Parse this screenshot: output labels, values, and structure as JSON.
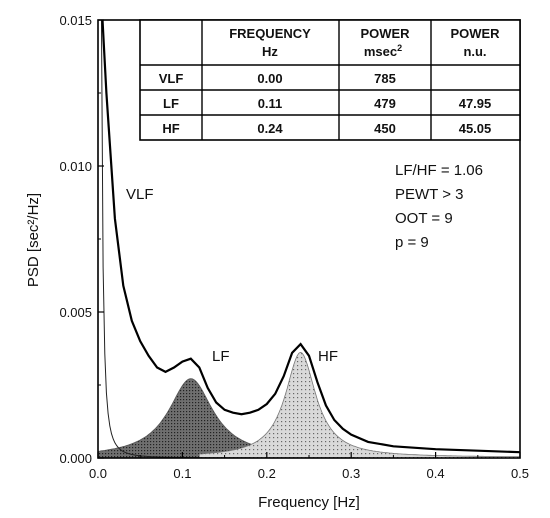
{
  "chart_data": {
    "type": "area",
    "xlabel": "Frequency [Hz]",
    "ylabel": "PSD [sec²/Hz]",
    "xlim": [
      0.0,
      0.5
    ],
    "ylim": [
      0.0,
      0.015
    ],
    "x_ticks": [
      "0.0",
      "0.1",
      "0.2",
      "0.3",
      "0.4",
      "0.5"
    ],
    "y_ticks": [
      "0.000",
      "0.005",
      "0.010",
      "0.015"
    ],
    "grid": false,
    "components": {
      "vlf": {
        "label": "VLF",
        "center": 0.0,
        "peak": 0.015
      },
      "lf": {
        "label": "LF",
        "center": 0.11,
        "peak": 0.0027
      },
      "hf": {
        "label": "HF",
        "center": 0.24,
        "peak": 0.0036
      }
    },
    "total_psd": {
      "x": [
        0.005,
        0.01,
        0.02,
        0.03,
        0.04,
        0.05,
        0.06,
        0.07,
        0.08,
        0.09,
        0.1,
        0.11,
        0.12,
        0.13,
        0.14,
        0.15,
        0.16,
        0.17,
        0.18,
        0.19,
        0.2,
        0.21,
        0.22,
        0.23,
        0.24,
        0.25,
        0.26,
        0.27,
        0.28,
        0.29,
        0.3,
        0.32,
        0.35,
        0.4,
        0.45,
        0.5
      ],
      "y": [
        0.0152,
        0.0125,
        0.0082,
        0.0059,
        0.0047,
        0.004,
        0.0035,
        0.0031,
        0.00295,
        0.0031,
        0.0033,
        0.0034,
        0.0031,
        0.0024,
        0.0019,
        0.00165,
        0.00155,
        0.0015,
        0.00155,
        0.00165,
        0.00185,
        0.0022,
        0.0028,
        0.0036,
        0.0039,
        0.0035,
        0.0026,
        0.0018,
        0.0013,
        0.001,
        0.0008,
        0.00055,
        0.0004,
        0.0003,
        0.00025,
        0.0002
      ]
    },
    "table": {
      "columns": [
        "",
        "FREQUENCY",
        "POWER",
        "POWER"
      ],
      "units": [
        "",
        "Hz",
        "msec",
        "n.u."
      ],
      "unit_superscripts": [
        "",
        "",
        "2",
        ""
      ],
      "rows": [
        [
          "VLF",
          "0.00",
          "785",
          ""
        ],
        [
          "LF",
          "0.11",
          "479",
          "47.95"
        ],
        [
          "HF",
          "0.24",
          "450",
          "45.05"
        ]
      ]
    },
    "annotations": [
      "LF/HF = 1.06",
      "PEWT > 3",
      "OOT = 9",
      "p = 9"
    ]
  }
}
